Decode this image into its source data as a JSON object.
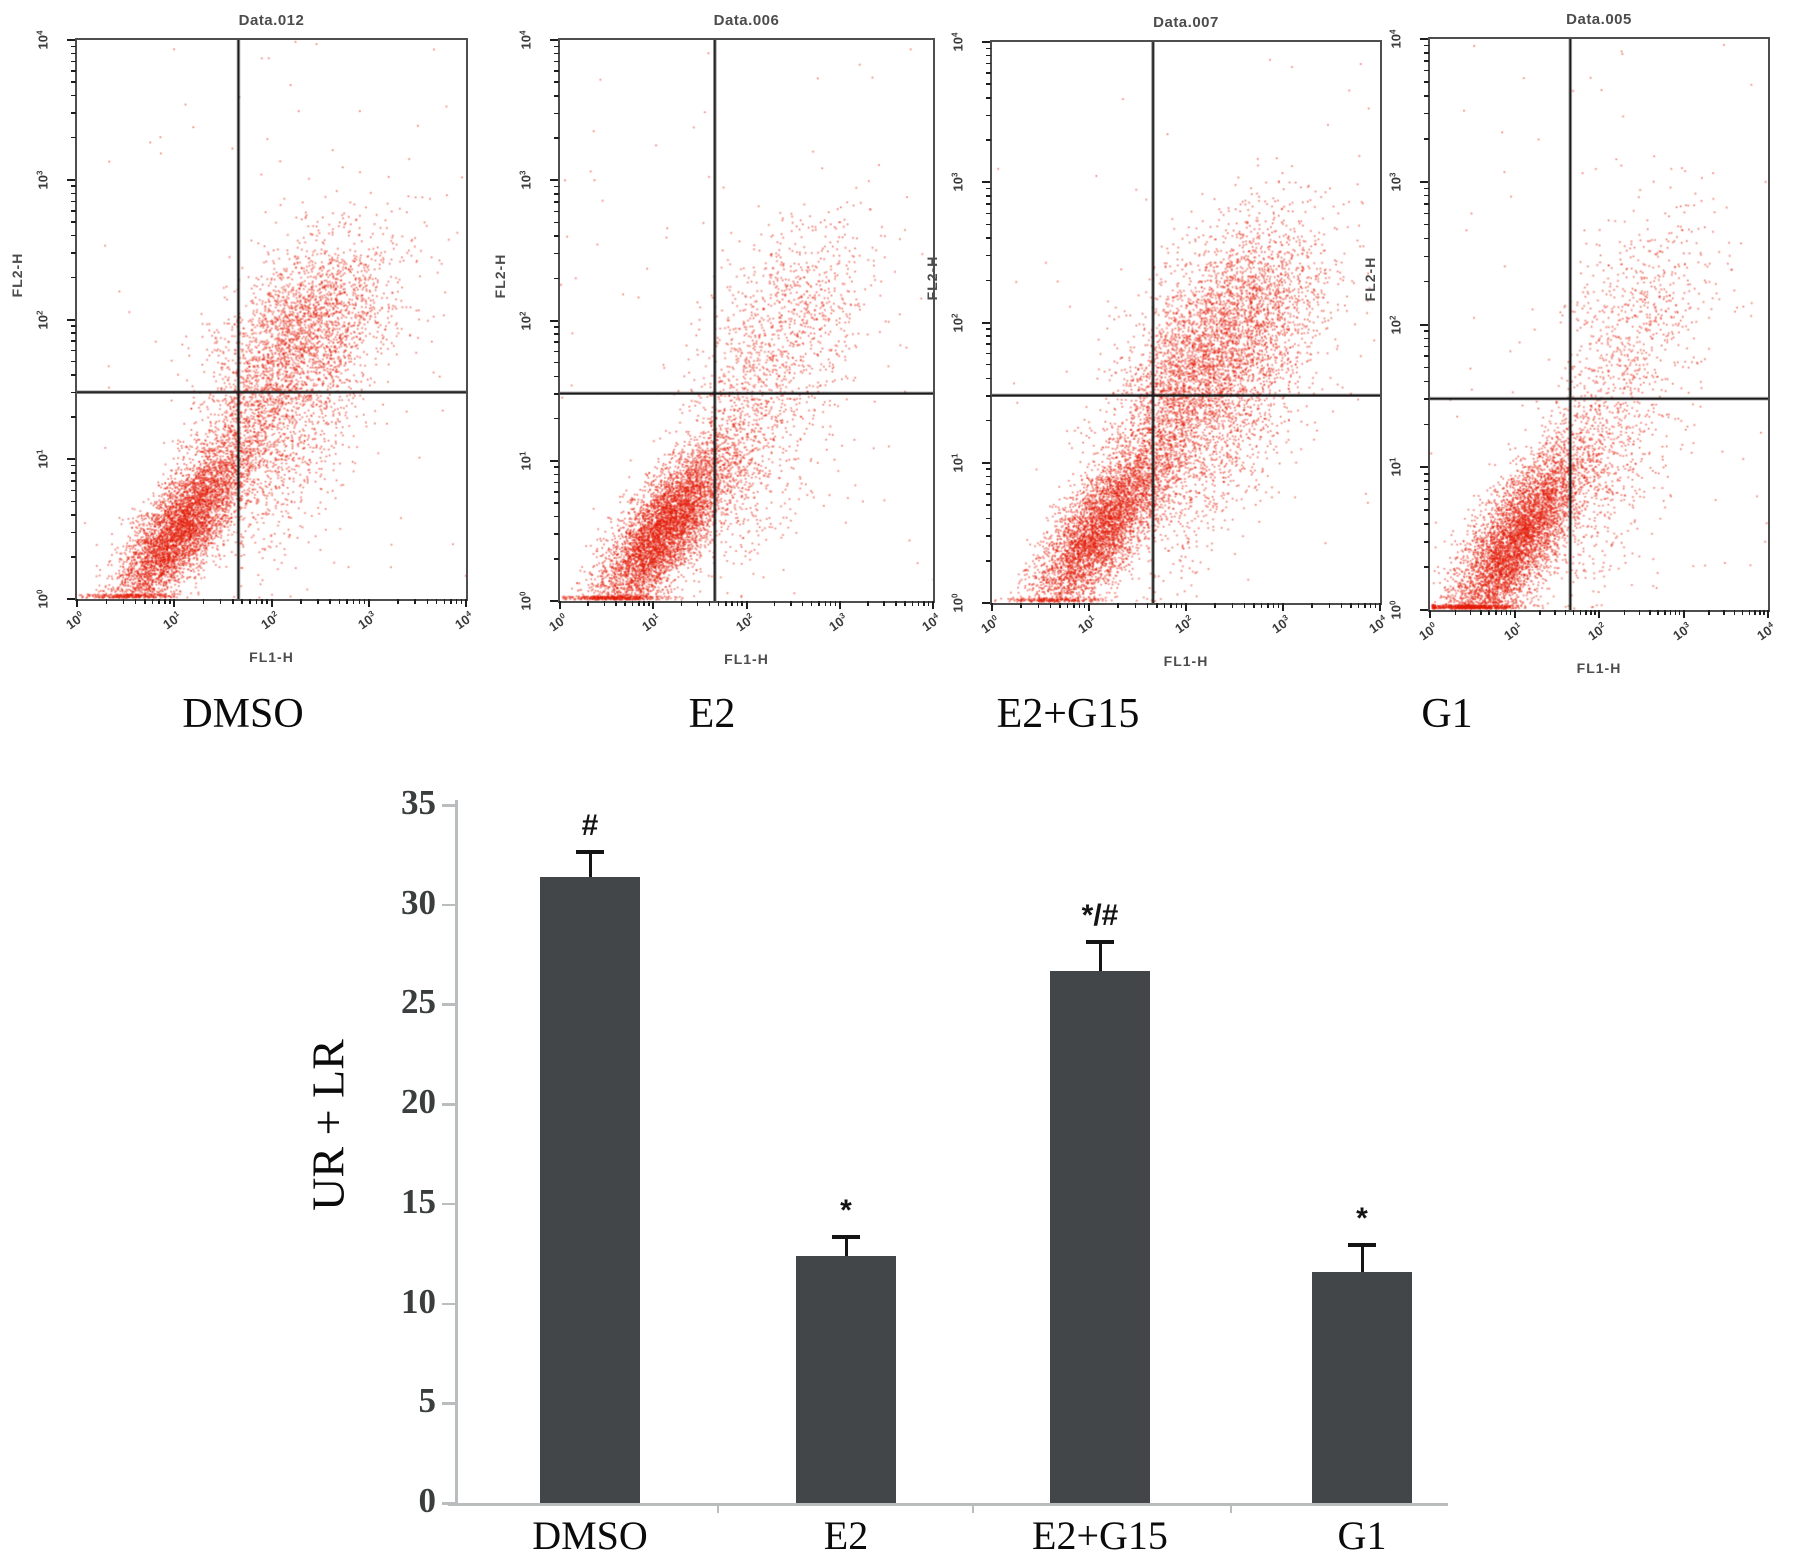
{
  "colors": {
    "scatter_point": "#e31b07",
    "gate_line": "#191919",
    "frame": "#4e4e4e",
    "bar_fill": "#434648",
    "bar_axis": "#b9bdbd",
    "error_bar": "#141414",
    "tick_text": "#3b3e3e"
  },
  "chart_data": {
    "flow_cytometry": {
      "type": "scatter",
      "x_axis_label": "FL1-H",
      "y_axis_label": "FL2-H",
      "x_log_range": [
        0,
        4
      ],
      "y_log_range": [
        0,
        4
      ],
      "tick_exponents": [
        0,
        1,
        2,
        3,
        4
      ],
      "panels": [
        {
          "title": "Data.012",
          "group_label": "DMSO",
          "gate": {
            "x_log": 1.66,
            "y_log": 1.48
          },
          "seed": 12,
          "clusters": [
            {
              "name": "lower-left-live",
              "n": 4500,
              "cx": 1.05,
              "cy": 0.5,
              "s_along": 0.42,
              "s_across": 0.15,
              "angle_deg": 40
            },
            {
              "name": "upper-right-late-apoptotic",
              "n": 2400,
              "cx": 2.35,
              "cy": 1.9,
              "s_along": 0.5,
              "s_across": 0.3,
              "angle_deg": 33
            },
            {
              "name": "diagonal-bridge",
              "n": 1000,
              "cx": 1.7,
              "cy": 1.25,
              "s_along": 0.5,
              "s_across": 0.2,
              "angle_deg": 52
            },
            {
              "name": "lower-right-early-apoptotic",
              "n": 600,
              "cx": 2.1,
              "cy": 1.0,
              "s_along": 0.45,
              "s_across": 0.28,
              "angle_deg": 45
            },
            {
              "name": "stray-uniform",
              "n": 80,
              "uniform": true
            }
          ]
        },
        {
          "title": "Data.006",
          "group_label": "E2",
          "gate": {
            "x_log": 1.66,
            "y_log": 1.48
          },
          "seed": 6,
          "clusters": [
            {
              "name": "lower-left-live",
              "n": 5200,
              "cx": 1.1,
              "cy": 0.5,
              "s_along": 0.45,
              "s_across": 0.16,
              "angle_deg": 40
            },
            {
              "name": "upper-right-late-apoptotic",
              "n": 850,
              "cx": 2.45,
              "cy": 2.0,
              "s_along": 0.5,
              "s_across": 0.32,
              "angle_deg": 30
            },
            {
              "name": "diagonal-bridge",
              "n": 450,
              "cx": 1.8,
              "cy": 1.2,
              "s_along": 0.5,
              "s_across": 0.22,
              "angle_deg": 50
            },
            {
              "name": "lower-right-early-apoptotic",
              "n": 420,
              "cx": 2.15,
              "cy": 0.95,
              "s_along": 0.5,
              "s_across": 0.3,
              "angle_deg": 45
            },
            {
              "name": "stray-uniform",
              "n": 60,
              "uniform": true
            }
          ]
        },
        {
          "title": "Data.007",
          "group_label": "E2+G15",
          "gate": {
            "x_log": 1.66,
            "y_log": 1.48
          },
          "seed": 7,
          "clusters": [
            {
              "name": "lower-left-live",
              "n": 4000,
              "cx": 1.1,
              "cy": 0.52,
              "s_along": 0.42,
              "s_across": 0.16,
              "angle_deg": 40
            },
            {
              "name": "upper-right-late-apoptotic",
              "n": 3200,
              "cx": 2.45,
              "cy": 1.92,
              "s_along": 0.55,
              "s_across": 0.33,
              "angle_deg": 33
            },
            {
              "name": "diagonal-bridge",
              "n": 1700,
              "cx": 1.78,
              "cy": 1.3,
              "s_along": 0.55,
              "s_across": 0.24,
              "angle_deg": 52
            },
            {
              "name": "lower-right-early-apoptotic",
              "n": 700,
              "cx": 2.2,
              "cy": 1.0,
              "s_along": 0.5,
              "s_across": 0.3,
              "angle_deg": 45
            },
            {
              "name": "stray-uniform",
              "n": 60,
              "uniform": true
            }
          ]
        },
        {
          "title": "Data.005",
          "group_label": "G1",
          "gate": {
            "x_log": 1.66,
            "y_log": 1.48
          },
          "seed": 5,
          "clusters": [
            {
              "name": "lower-left-live",
              "n": 5200,
              "cx": 1.0,
              "cy": 0.48,
              "s_along": 0.5,
              "s_across": 0.18,
              "angle_deg": 40
            },
            {
              "name": "upper-right-late-apoptotic",
              "n": 600,
              "cx": 2.45,
              "cy": 2.05,
              "s_along": 0.5,
              "s_across": 0.35,
              "angle_deg": 33
            },
            {
              "name": "diagonal-bridge",
              "n": 380,
              "cx": 1.85,
              "cy": 1.2,
              "s_along": 0.55,
              "s_across": 0.24,
              "angle_deg": 52
            },
            {
              "name": "lower-right-early-apoptotic",
              "n": 420,
              "cx": 2.05,
              "cy": 0.85,
              "s_along": 0.5,
              "s_across": 0.3,
              "angle_deg": 48
            },
            {
              "name": "stray-uniform",
              "n": 70,
              "uniform": true
            }
          ]
        }
      ]
    },
    "bar_chart": {
      "type": "bar",
      "categories": [
        "DMSO",
        "E2",
        "E2+G15",
        "G1"
      ],
      "values": [
        31.4,
        12.4,
        26.7,
        11.6
      ],
      "errors": [
        1.2,
        0.9,
        1.4,
        1.3
      ],
      "annotations": [
        "#",
        "*",
        "*/#",
        "*"
      ],
      "ylabel": "UR + LR",
      "xlabel": "",
      "yticks": [
        0,
        5,
        10,
        15,
        20,
        25,
        30,
        35
      ],
      "ylim": [
        0,
        35
      ],
      "grid": false,
      "legend": null
    }
  }
}
